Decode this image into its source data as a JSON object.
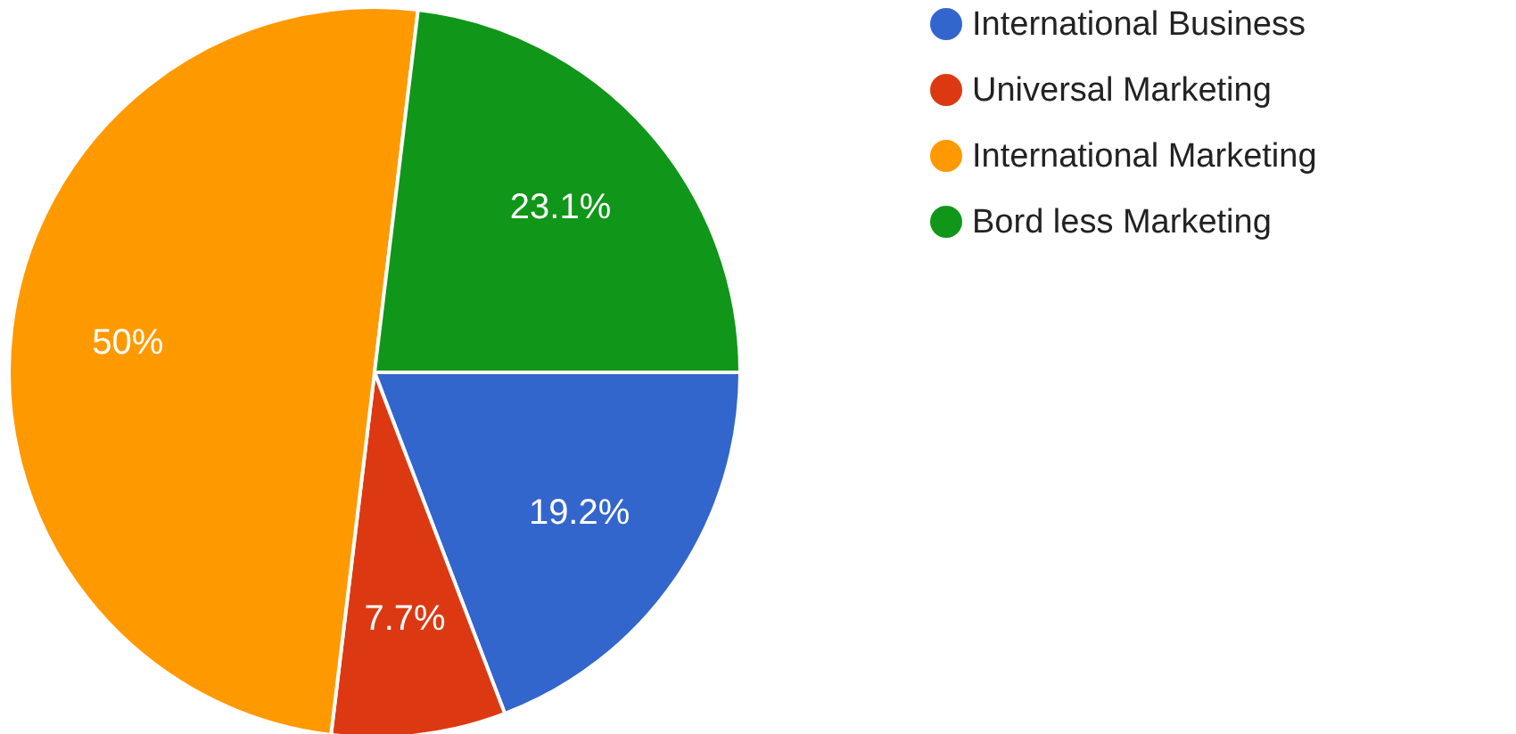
{
  "chart_data": {
    "type": "pie",
    "categories": [
      "International Business",
      "Universal Marketing",
      "International Marketing",
      "Bord less Marketing"
    ],
    "values": [
      19.2,
      7.7,
      50,
      23.1
    ],
    "colors": [
      "#3366cc",
      "#dc3912",
      "#ff9900",
      "#109618"
    ],
    "value_labels": [
      "19.2%",
      "7.7%",
      "50%",
      "23.1%"
    ],
    "legend": "top right"
  }
}
